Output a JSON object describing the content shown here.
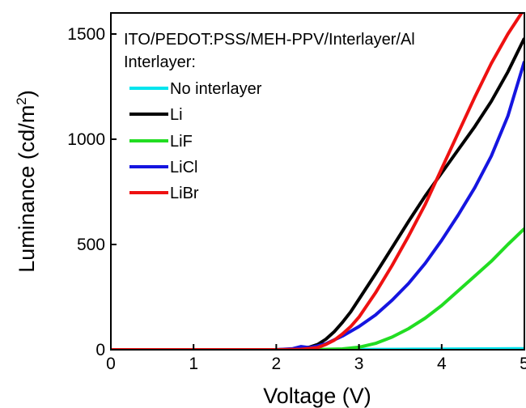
{
  "chart_data": {
    "type": "line",
    "title": "",
    "xlabel": "Voltage (V)",
    "ylabel": "Luminance (cd/m",
    "ylabel_superscript": "2",
    "ylabel_close": ")",
    "xlim": [
      0,
      5
    ],
    "ylim": [
      0,
      1600
    ],
    "x_ticks": [
      0,
      1,
      2,
      3,
      4,
      5
    ],
    "y_ticks": [
      0,
      500,
      1000,
      1500
    ],
    "grid": false,
    "legend_position": "top-left",
    "annotation_lines": [
      "ITO/PEDOT:PSS/MEH-PPV/Interlayer/Al",
      "Interlayer:"
    ],
    "series": [
      {
        "name": "No interlayer",
        "color": "#00e5ee",
        "x": [
          0,
          1,
          2,
          2.5,
          3,
          3.5,
          4,
          4.5,
          5
        ],
        "y": [
          0,
          0,
          0,
          0,
          1,
          2,
          3,
          4,
          5
        ]
      },
      {
        "name": "Li",
        "color": "#000000",
        "x": [
          0,
          2.0,
          2.2,
          2.4,
          2.5,
          2.6,
          2.7,
          2.8,
          2.9,
          3.0,
          3.2,
          3.4,
          3.6,
          3.8,
          4.0,
          4.2,
          4.4,
          4.6,
          4.8,
          5.0
        ],
        "y": [
          0,
          0,
          2,
          12,
          25,
          50,
          85,
          130,
          180,
          240,
          360,
          485,
          610,
          730,
          840,
          950,
          1060,
          1180,
          1320,
          1480
        ]
      },
      {
        "name": "LiF",
        "color": "#22dd22",
        "x": [
          0,
          2.0,
          2.5,
          2.8,
          3.0,
          3.2,
          3.4,
          3.6,
          3.8,
          4.0,
          4.2,
          4.4,
          4.6,
          4.8,
          5.0
        ],
        "y": [
          0,
          0,
          1,
          4,
          12,
          30,
          60,
          100,
          150,
          210,
          280,
          350,
          420,
          500,
          575
        ]
      },
      {
        "name": "LiCl",
        "color": "#1515e0",
        "x": [
          0,
          2.0,
          2.2,
          2.3,
          2.4,
          2.5,
          2.6,
          2.8,
          3.0,
          3.2,
          3.4,
          3.6,
          3.8,
          4.0,
          4.2,
          4.4,
          4.6,
          4.8,
          5.0
        ],
        "y": [
          0,
          0,
          5,
          15,
          10,
          18,
          28,
          65,
          110,
          165,
          235,
          315,
          410,
          520,
          640,
          770,
          920,
          1110,
          1370
        ]
      },
      {
        "name": "LiBr",
        "color": "#ee1111",
        "x": [
          0,
          2.0,
          2.3,
          2.5,
          2.6,
          2.7,
          2.8,
          2.9,
          3.0,
          3.2,
          3.4,
          3.6,
          3.8,
          4.0,
          4.2,
          4.4,
          4.6,
          4.8,
          5.0
        ],
        "y": [
          0,
          0,
          2,
          10,
          25,
          45,
          75,
          110,
          155,
          270,
          400,
          540,
          690,
          860,
          1030,
          1200,
          1360,
          1500,
          1620
        ]
      }
    ]
  }
}
